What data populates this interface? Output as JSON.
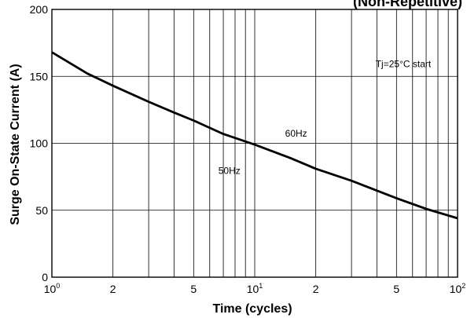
{
  "chart_data": {
    "type": "line",
    "title": "(Non-Repetitive)",
    "xlabel": "Time (cycles)",
    "ylabel": "Surge On-State Current (A)",
    "x_scale": "log",
    "xlim": [
      1,
      100
    ],
    "ylim": [
      0,
      200
    ],
    "grid": true,
    "x_ticks": [
      {
        "value": 1,
        "base": "10",
        "exp": "0"
      },
      {
        "value": 2,
        "base": "2",
        "exp": ""
      },
      {
        "value": 5,
        "base": "5",
        "exp": ""
      },
      {
        "value": 10,
        "base": "10",
        "exp": "1"
      },
      {
        "value": 20,
        "base": "2",
        "exp": ""
      },
      {
        "value": 50,
        "base": "5",
        "exp": ""
      },
      {
        "value": 100,
        "base": "10",
        "exp": "2"
      }
    ],
    "y_ticks": [
      {
        "value": 0,
        "label": "0"
      },
      {
        "value": 50,
        "label": "50"
      },
      {
        "value": 100,
        "label": "100"
      },
      {
        "value": 150,
        "label": "150"
      },
      {
        "value": 200,
        "label": "200"
      }
    ],
    "series": [
      {
        "x": [
          1,
          1.5,
          2,
          3,
          4,
          5,
          7,
          10,
          15,
          20,
          30,
          50,
          70,
          100
        ],
        "y": [
          168,
          152,
          143,
          131,
          123,
          117,
          107,
          99,
          89,
          81,
          72,
          59,
          51,
          44
        ]
      }
    ],
    "annotations": [
      {
        "text": "Tj=25°C start",
        "x": 54,
        "y": 157
      },
      {
        "text": "60Hz",
        "x": 16,
        "y": 105
      },
      {
        "text": "50Hz",
        "x": 7.5,
        "y": 77
      }
    ]
  },
  "colors": {
    "line": "#000000",
    "grid": "#000000",
    "background": "#ffffff"
  }
}
